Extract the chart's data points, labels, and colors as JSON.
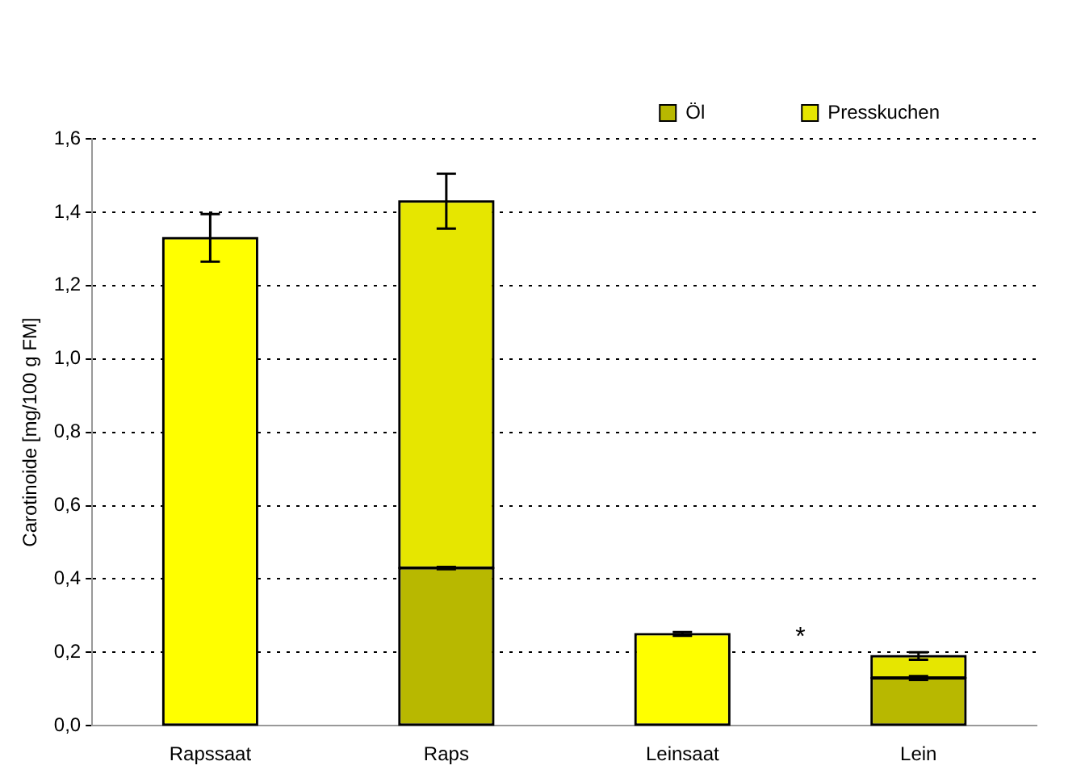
{
  "chart_data": {
    "type": "bar",
    "stacked": true,
    "ylabel": "Carotinoide [mg/100 g FM]",
    "categories": [
      "Rapssaat",
      "Raps",
      "Leinsaat",
      "Lein"
    ],
    "series": [
      {
        "color": "#ffff00",
        "values": [
          1.33,
          null,
          0.25,
          null
        ],
        "errors": [
          0.065,
          null,
          0.005,
          null
        ]
      },
      {
        "name": "Öl",
        "color": "#b8b800",
        "values": [
          null,
          0.43,
          null,
          0.13
        ],
        "errors": [
          null,
          0.003,
          null,
          0.005
        ]
      },
      {
        "name": "Presskuchen",
        "color": "#e6e600",
        "values": [
          null,
          1.0,
          null,
          0.06
        ],
        "errors": [
          null,
          0.075,
          null,
          0.01
        ]
      }
    ],
    "ylim": [
      0,
      1.6
    ],
    "yticks": [
      {
        "value": 0,
        "label": "0,0"
      },
      {
        "value": 0.2,
        "label": "0,2"
      },
      {
        "value": 0.4,
        "label": "0,4"
      },
      {
        "value": 0.6,
        "label": "0,6"
      },
      {
        "value": 0.8,
        "label": "0,8"
      },
      {
        "value": 1.0,
        "label": "1,0"
      },
      {
        "value": 1.2,
        "label": "1,2"
      },
      {
        "value": 1.4,
        "label": "1,4"
      },
      {
        "value": 1.6,
        "label": "1,6"
      }
    ],
    "grid": "y",
    "legend": "top right",
    "annotations": [
      "*"
    ]
  }
}
